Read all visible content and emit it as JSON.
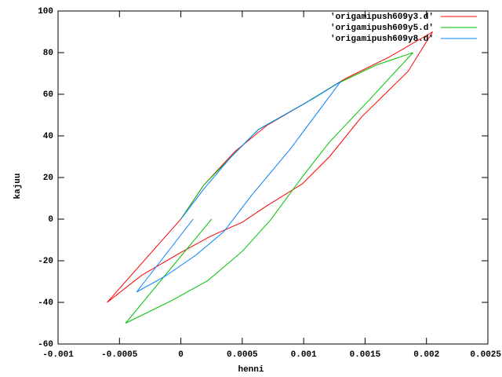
{
  "chart_data": {
    "type": "line",
    "x_label": "henni",
    "y_label": "kajuu",
    "xlim": [
      -0.001,
      0.0025
    ],
    "ylim": [
      -60,
      100
    ],
    "xticks": [
      -0.001,
      -0.0005,
      0,
      0.0005,
      0.001,
      0.0015,
      0.002,
      0.0025
    ],
    "yticks": [
      -60,
      -40,
      -20,
      0,
      20,
      40,
      60,
      80,
      100
    ],
    "legend": "top-right",
    "series": [
      {
        "name": "'origamipush609y3.d'",
        "color": "#ff0000",
        "x": [
          -0.0006,
          0,
          0.00019,
          0.00044,
          0.0007,
          0.00102,
          0.00134,
          0.0017,
          0.00205,
          0.00185,
          0.00147,
          0.00121,
          0.00099,
          0.0007,
          0.0005,
          0.00025,
          0,
          -0.00032,
          -0.0006
        ],
        "values": [
          -40,
          0,
          16.6,
          32.5,
          45,
          56,
          67.5,
          78,
          90,
          71,
          49,
          30,
          17,
          6.4,
          -1.5,
          -8,
          -16,
          -27,
          -40
        ]
      },
      {
        "name": "'origamipush609y5.d'",
        "color": "#00c000",
        "x": [
          0.00025,
          -0.00045,
          -7e-05,
          0.00022,
          0.0005,
          0.00073,
          0.00099,
          0.00121,
          0.00153,
          0.00189,
          0.00159,
          0.00127,
          0.00102,
          0.00063,
          0.00044,
          0.00019,
          0
        ],
        "values": [
          0,
          -50,
          -39,
          -29.5,
          -15.5,
          -0.4,
          20.4,
          37,
          57,
          80,
          74,
          65,
          56,
          43,
          31.7,
          16.6,
          0
        ]
      },
      {
        "name": "'origamipush609y8.d'",
        "color": "#0080ff",
        "x": [
          0.0001,
          -0.00036,
          -0.00013,
          0.00012,
          0.00035,
          0.00057,
          0.00089,
          0.0013,
          0.00108,
          0.00063,
          0.00041,
          0.00019,
          0
        ],
        "values": [
          0,
          -35,
          -27.5,
          -17.4,
          -6,
          11,
          33.6,
          66,
          58,
          43,
          30,
          14.7,
          0
        ]
      }
    ]
  }
}
